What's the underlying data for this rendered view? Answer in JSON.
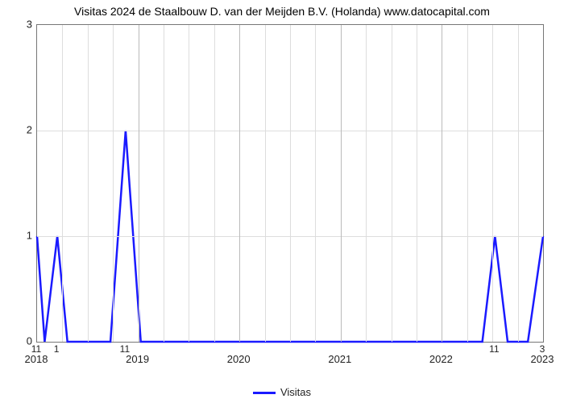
{
  "chart": {
    "type": "line",
    "title": "Visitas 2024 de Staalbouw D. van der Meijden B.V. (Holanda) www.datocapital.com",
    "title_fontsize": 14,
    "background_color": "#ffffff",
    "grid_color": "#dddddd",
    "axis_color": "#777777",
    "tick_label_color": "#222222",
    "tick_label_fontsize": 13,
    "series": {
      "label": "Visitas",
      "color": "#1a1aff",
      "line_width": 2.5,
      "points": [
        {
          "x": 0.0,
          "y": 1.0
        },
        {
          "x": 0.015,
          "y": 0.0
        },
        {
          "x": 0.04,
          "y": 1.0
        },
        {
          "x": 0.06,
          "y": 0.0
        },
        {
          "x": 0.145,
          "y": 0.0
        },
        {
          "x": 0.175,
          "y": 2.0
        },
        {
          "x": 0.205,
          "y": 0.0
        },
        {
          "x": 0.88,
          "y": 0.0
        },
        {
          "x": 0.905,
          "y": 1.0
        },
        {
          "x": 0.93,
          "y": 0.0
        },
        {
          "x": 0.97,
          "y": 0.0
        },
        {
          "x": 1.0,
          "y": 1.0
        }
      ]
    },
    "x_axis": {
      "domain_min": 0.0,
      "domain_max": 1.0,
      "major_ticks": [
        {
          "pos": 0.0,
          "label": "2018"
        },
        {
          "pos": 0.2,
          "label": "2019"
        },
        {
          "pos": 0.4,
          "label": "2020"
        },
        {
          "pos": 0.6,
          "label": "2021"
        },
        {
          "pos": 0.8,
          "label": "2022"
        },
        {
          "pos": 1.0,
          "label": "2023"
        }
      ],
      "minor_gridlines": [
        0.05,
        0.1,
        0.15,
        0.25,
        0.3,
        0.35,
        0.45,
        0.5,
        0.55,
        0.65,
        0.7,
        0.75,
        0.85,
        0.9,
        0.95
      ],
      "secondary_labels": [
        {
          "pos": 0.0,
          "text": "11"
        },
        {
          "pos": 0.04,
          "text": "1"
        },
        {
          "pos": 0.175,
          "text": "11"
        },
        {
          "pos": 0.905,
          "text": "11"
        },
        {
          "pos": 1.0,
          "text": "3"
        }
      ]
    },
    "y_axis": {
      "min": 0,
      "max": 3,
      "ticks": [
        0,
        1,
        2,
        3
      ]
    },
    "legend": {
      "label": "Visitas",
      "swatch_color": "#1a1aff"
    }
  }
}
